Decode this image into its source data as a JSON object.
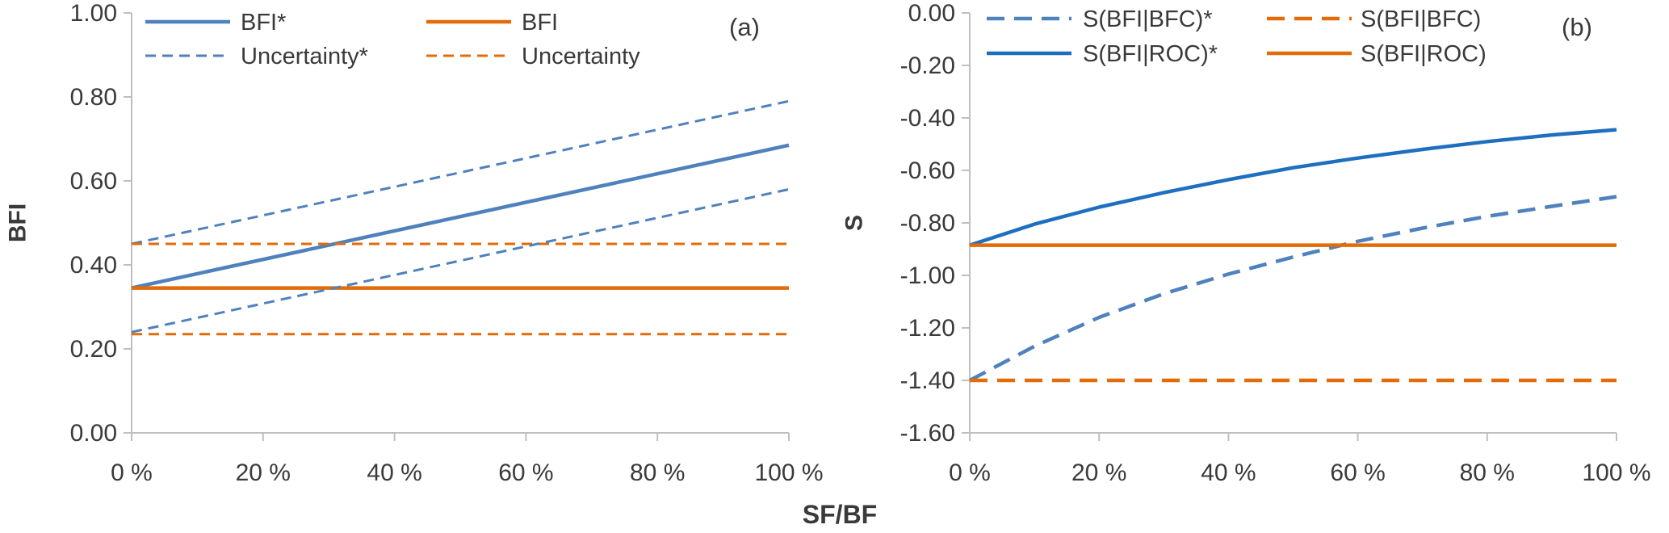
{
  "figure": {
    "xlabel": "SF/BF"
  },
  "colors": {
    "blue": "#4F81BD",
    "blue_dark": "#1F6FC0",
    "orange": "#E36C09",
    "axis": "#BFBFBF",
    "text": "#3A3A3A"
  },
  "chart_data": [
    {
      "type": "line",
      "panel_label": "(a)",
      "title": "",
      "xlabel": "SF/BF",
      "ylabel": "BFI",
      "xlim": [
        0,
        100
      ],
      "ylim": [
        0,
        1
      ],
      "xticks": [
        0,
        20,
        40,
        60,
        80,
        100
      ],
      "xtick_labels": [
        "0 %",
        "20 %",
        "40 %",
        "60 %",
        "80 %",
        "100 %"
      ],
      "yticks": [
        0,
        0.2,
        0.4,
        0.6,
        0.8,
        1.0
      ],
      "ytick_labels": [
        "0.00",
        "0.20",
        "0.40",
        "0.60",
        "0.80",
        "1.00"
      ],
      "grid": false,
      "legend_position": "top",
      "x": [
        0,
        100
      ],
      "series": [
        {
          "name": "BFI*",
          "values": [
            0.345,
            0.685
          ],
          "color": "#4F81BD",
          "style": "solid"
        },
        {
          "name": "BFI",
          "values": [
            0.345,
            0.345
          ],
          "color": "#E36C09",
          "style": "solid"
        },
        {
          "name": "Uncertainty*",
          "values": [
            0.45,
            0.79
          ],
          "color": "#4F81BD",
          "style": "dashed"
        },
        {
          "name": "Uncertainty",
          "values": [
            0.45,
            0.45
          ],
          "color": "#E36C09",
          "style": "dashed"
        },
        {
          "name": "Uncertainty* (lower)",
          "legend": false,
          "values": [
            0.24,
            0.58
          ],
          "color": "#4F81BD",
          "style": "dashed"
        },
        {
          "name": "Uncertainty (lower)",
          "legend": false,
          "values": [
            0.235,
            0.235
          ],
          "color": "#E36C09",
          "style": "dashed"
        }
      ]
    },
    {
      "type": "line",
      "panel_label": "(b)",
      "title": "",
      "xlabel": "SF/BF",
      "ylabel": "S",
      "xlim": [
        0,
        100
      ],
      "ylim": [
        -1.6,
        0
      ],
      "xticks": [
        0,
        20,
        40,
        60,
        80,
        100
      ],
      "xtick_labels": [
        "0 %",
        "20 %",
        "40 %",
        "60 %",
        "80 %",
        "100 %"
      ],
      "yticks": [
        0,
        -0.2,
        -0.4,
        -0.6,
        -0.8,
        -1.0,
        -1.2,
        -1.4,
        -1.6
      ],
      "ytick_labels": [
        "0.00",
        "-0.20",
        "-0.40",
        "-0.60",
        "-0.80",
        "-1.00",
        "-1.20",
        "-1.40",
        "-1.60"
      ],
      "grid": false,
      "legend_position": "top",
      "x": [
        0,
        10,
        20,
        30,
        40,
        50,
        60,
        70,
        80,
        90,
        100
      ],
      "series": [
        {
          "name": "S(BFI|BFC)*",
          "values": [
            -1.4,
            -1.27,
            -1.16,
            -1.07,
            -0.995,
            -0.93,
            -0.87,
            -0.82,
            -0.775,
            -0.737,
            -0.7
          ],
          "color": "#4F81BD",
          "style": "dashed"
        },
        {
          "name": "S(BFI|BFC)",
          "values": [
            -1.4,
            -1.4,
            -1.4,
            -1.4,
            -1.4,
            -1.4,
            -1.4,
            -1.4,
            -1.4,
            -1.4,
            -1.4
          ],
          "color": "#E36C09",
          "style": "dashed"
        },
        {
          "name": "S(BFI|ROC)*",
          "values": [
            -0.885,
            -0.805,
            -0.74,
            -0.685,
            -0.635,
            -0.59,
            -0.553,
            -0.52,
            -0.49,
            -0.465,
            -0.445
          ],
          "color": "#1F6FC0",
          "style": "solid"
        },
        {
          "name": "S(BFI|ROC)",
          "values": [
            -0.885,
            -0.885,
            -0.885,
            -0.885,
            -0.885,
            -0.885,
            -0.885,
            -0.885,
            -0.885,
            -0.885,
            -0.885
          ],
          "color": "#E36C09",
          "style": "solid"
        }
      ]
    }
  ]
}
